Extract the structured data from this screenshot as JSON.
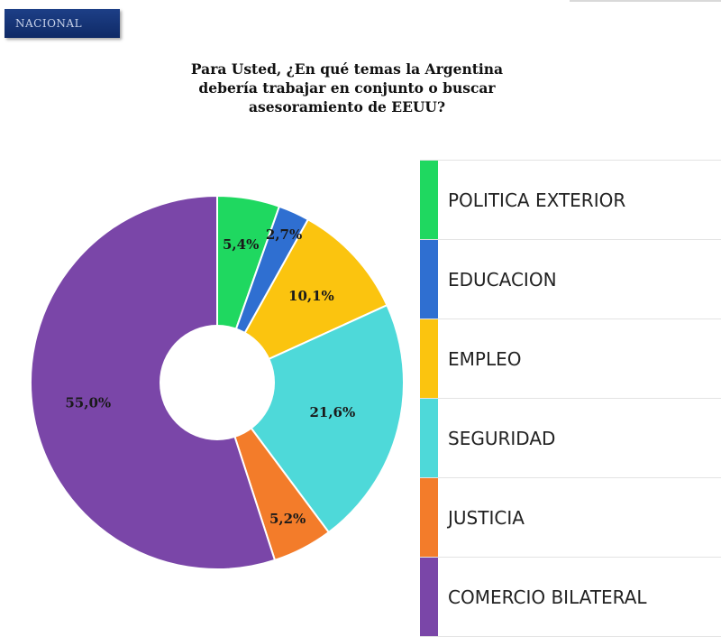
{
  "header": {
    "section_label": "NACIONAL",
    "section_color": "#17367a"
  },
  "chart_data": {
    "type": "pie",
    "variant": "donut",
    "title_lines": [
      "Para Usted, ¿En qué temas la Argentina",
      "debería trabajar en conjunto o buscar",
      "asesoramiento de EEUU?"
    ],
    "categories": [
      "POLITICA EXTERIOR",
      "EDUCACION",
      "EMPLEO",
      "SEGURIDAD",
      "JUSTICIA",
      "COMERCIO BILATERAL"
    ],
    "values": [
      5.4,
      2.7,
      10.1,
      21.6,
      5.2,
      55.0
    ],
    "value_labels": [
      "5,4%",
      "2,7%",
      "10,1%",
      "21,6%",
      "5,2%",
      "55,0%"
    ],
    "colors": [
      "#1fd860",
      "#2f6fd1",
      "#fbc40f",
      "#4ed9d9",
      "#f37c2a",
      "#7a46a8"
    ],
    "start_angle": "12 o'clock",
    "direction": "clockwise",
    "legend_position": "right"
  }
}
